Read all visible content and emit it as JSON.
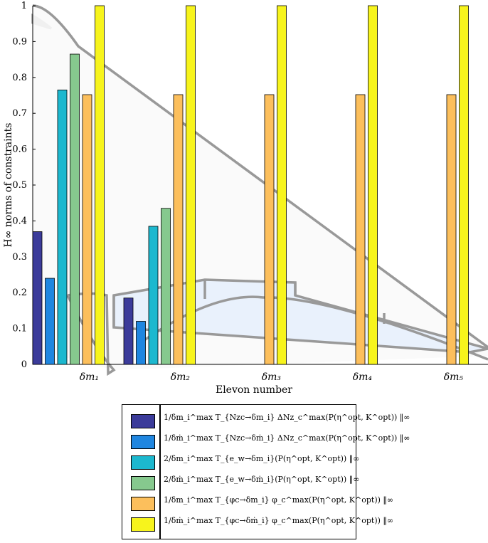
{
  "chart_data": {
    "type": "bar",
    "categories": [
      "δm₁",
      "δm₂",
      "δm₃",
      "δm₄",
      "δm₅"
    ],
    "series": [
      {
        "name": "‖ 1/δm_i^max T_{Nzc→δm_i} ΔNz_c^max(P(η^opt, K^opt)) ‖∞",
        "color": "#3b3b9a",
        "values": [
          0.37,
          0.185,
          null,
          null,
          null
        ]
      },
      {
        "name": "‖ 1/δṁ_i^max T_{Nzc→δṁ_i} ΔNz_c^max(P(η^opt, K^opt)) ‖∞",
        "color": "#1f86e0",
        "values": [
          0.24,
          0.12,
          null,
          null,
          null
        ]
      },
      {
        "name": "‖ 2/δm_i^max T_{e_w→δm_i}(P(η^opt, K^opt)) ‖∞",
        "color": "#1cb8cf",
        "values": [
          0.765,
          0.385,
          null,
          null,
          null
        ]
      },
      {
        "name": "‖ 2/δṁ_i^max T_{e_w→δṁ_i}(P(η^opt, K^opt)) ‖∞",
        "color": "#86c98e",
        "values": [
          0.865,
          0.435,
          null,
          null,
          null
        ]
      },
      {
        "name": "‖ 1/δm_i^max T_{φc→δm_i} φ_c^max(P(η^opt, K^opt)) ‖∞",
        "color": "#fcbf5c",
        "values": [
          0.752,
          0.752,
          0.752,
          0.752,
          0.752
        ]
      },
      {
        "name": "‖ 1/δṁ_i^max T_{φc→δṁ_i} φ_c^max(P(η^opt, K^opt)) ‖∞",
        "color": "#f7f41c",
        "values": [
          1.0,
          1.0,
          1.0,
          1.0,
          1.0
        ]
      }
    ],
    "xlabel": "Elevon number",
    "ylabel": "H∞ norms of constraints",
    "ylim": [
      0,
      1
    ],
    "yticks": [
      "0",
      "0.1",
      "0.2",
      "0.3",
      "0.4",
      "0.5",
      "0.6",
      "0.7",
      "0.8",
      "0.9",
      "1"
    ],
    "legend_position": "bottom-below"
  },
  "legend": {
    "entries": [
      {
        "color": "#3b3b9a",
        "label": "1/δm_i^max T_{Nzc→δm_i} ΔNz_c^max(P(η^opt, K^opt)) ‖∞"
      },
      {
        "color": "#1f86e0",
        "label": "1/δṁ_i^max T_{Nzc→δṁ_i} ΔNz_c^max(P(η^opt, K^opt)) ‖∞"
      },
      {
        "color": "#1cb8cf",
        "label": "2/δm_i^max T_{e_w→δm_i}(P(η^opt, K^opt)) ‖∞"
      },
      {
        "color": "#86c98e",
        "label": "2/δṁ_i^max T_{e_w→δṁ_i}(P(η^opt, K^opt)) ‖∞"
      },
      {
        "color": "#fcbf5c",
        "label": "1/δm_i^max T_{φc→δm_i} φ_c^max(P(η^opt, K^opt)) ‖∞"
      },
      {
        "color": "#f7f41c",
        "label": "1/δṁ_i^max T_{φc→δṁ_i} φ_c^max(P(η^opt, K^opt)) ‖∞"
      }
    ]
  }
}
